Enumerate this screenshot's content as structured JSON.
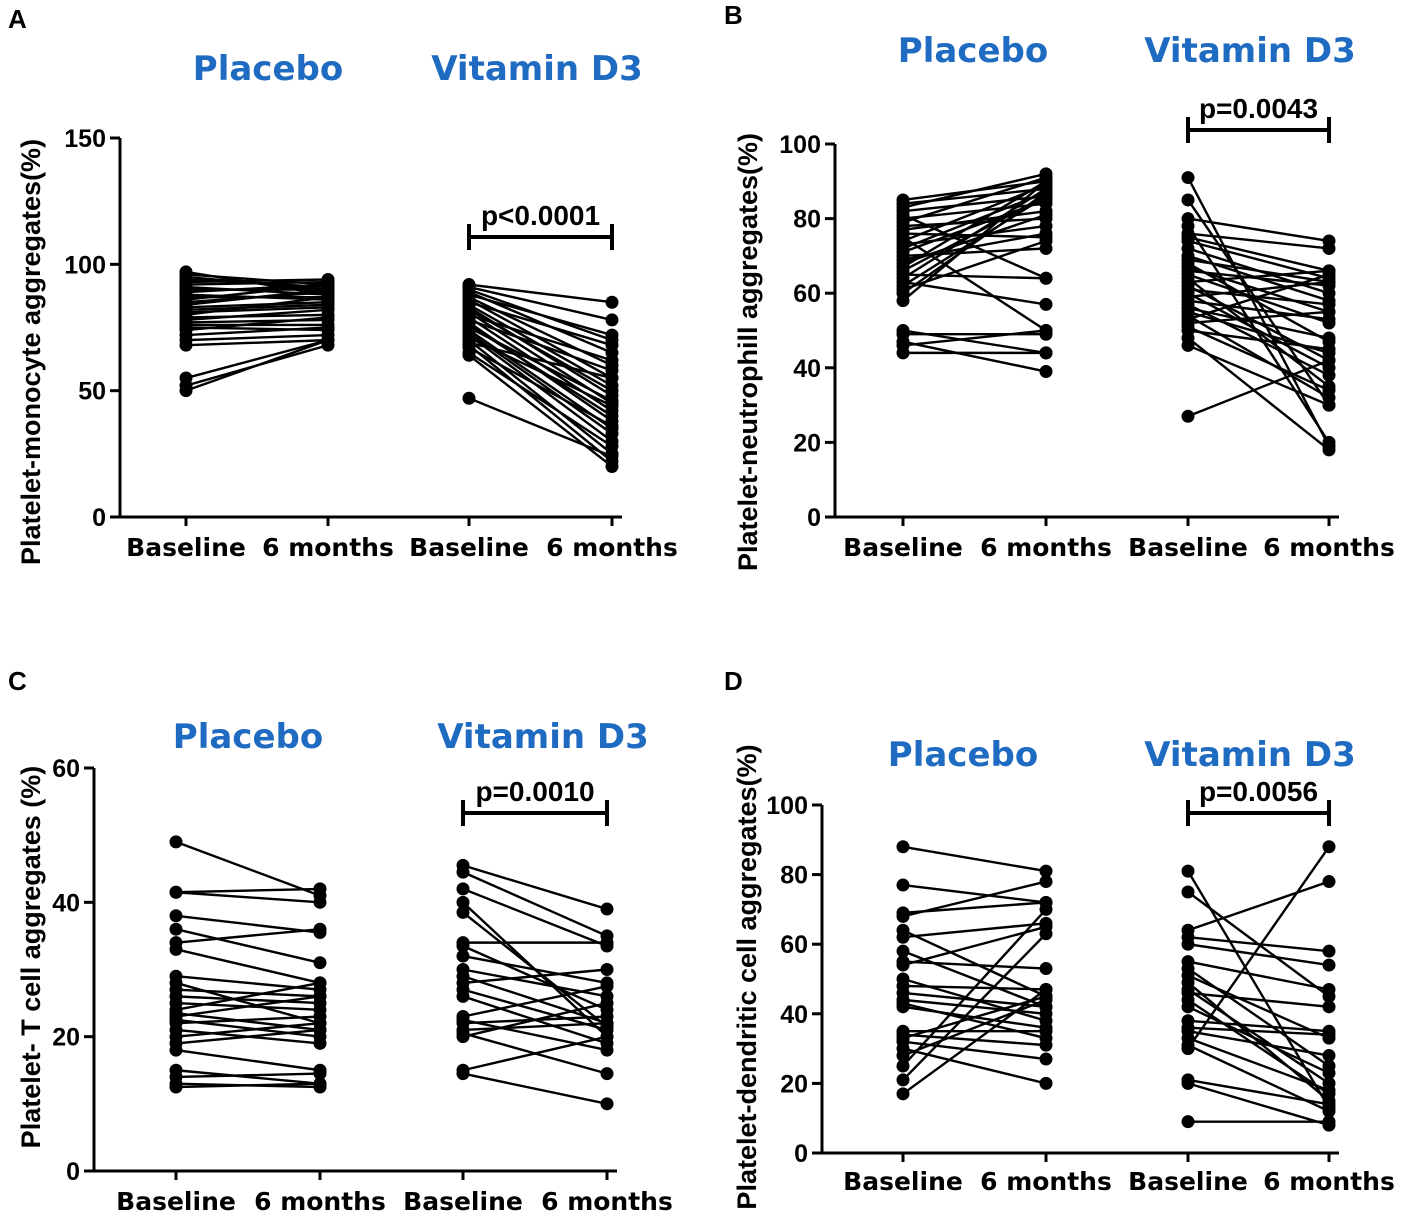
{
  "figure": {
    "accent_color": "#1F6BC1",
    "text_color": "#000000"
  },
  "chart_data": [
    {
      "type": "paired_dot",
      "panel": "A",
      "ylabel": "Platelet-monocyte aggregates(%)",
      "ylim": [
        0,
        150
      ],
      "yticks": [
        0,
        50,
        100,
        150
      ],
      "categories": [
        "Baseline",
        "6 months",
        "Baseline",
        "6 months"
      ],
      "groups": [
        {
          "name": "Placebo",
          "pairs": [
            [
              97,
              88
            ],
            [
              96,
              92
            ],
            [
              95,
              90
            ],
            [
              94,
              91
            ],
            [
              93,
              94
            ],
            [
              92,
              93
            ],
            [
              91,
              88
            ],
            [
              90,
              90
            ],
            [
              89,
              92
            ],
            [
              88,
              86
            ],
            [
              87,
              87
            ],
            [
              86,
              92
            ],
            [
              85,
              89
            ],
            [
              84,
              90
            ],
            [
              83,
              85
            ],
            [
              82,
              84
            ],
            [
              81,
              83
            ],
            [
              80,
              87
            ],
            [
              79,
              80
            ],
            [
              78,
              82
            ],
            [
              77,
              78
            ],
            [
              76,
              76
            ],
            [
              75,
              74
            ],
            [
              74,
              79
            ],
            [
              72,
              75
            ],
            [
              70,
              72
            ],
            [
              68,
              70
            ],
            [
              55,
              70
            ],
            [
              52,
              68
            ],
            [
              50,
              70
            ]
          ]
        },
        {
          "name": "Vitamin D3",
          "pvalue": "p<0.0001",
          "pairs": [
            [
              92,
              85
            ],
            [
              91,
              78
            ],
            [
              90,
              70
            ],
            [
              89,
              65
            ],
            [
              88,
              72
            ],
            [
              87,
              60
            ],
            [
              86,
              55
            ],
            [
              85,
              68
            ],
            [
              84,
              52
            ],
            [
              83,
              48
            ],
            [
              82,
              50
            ],
            [
              81,
              45
            ],
            [
              80,
              62
            ],
            [
              79,
              42
            ],
            [
              78,
              58
            ],
            [
              77,
              38
            ],
            [
              76,
              40
            ],
            [
              75,
              46
            ],
            [
              74,
              35
            ],
            [
              73,
              33
            ],
            [
              72,
              30
            ],
            [
              71,
              44
            ],
            [
              70,
              25
            ],
            [
              69,
              55
            ],
            [
              68,
              22
            ],
            [
              67,
              36
            ],
            [
              65,
              28
            ],
            [
              64,
              20
            ],
            [
              47,
              24
            ]
          ]
        }
      ]
    },
    {
      "type": "paired_dot",
      "panel": "B",
      "ylabel": "Platelet-neutrophill aggregates(%)",
      "ylim": [
        0,
        100
      ],
      "yticks": [
        0,
        20,
        40,
        60,
        80,
        100
      ],
      "categories": [
        "Baseline",
        "6 months",
        "Baseline",
        "6 months"
      ],
      "groups": [
        {
          "name": "Placebo",
          "pairs": [
            [
              85,
              90
            ],
            [
              84,
              88
            ],
            [
              83,
              92
            ],
            [
              82,
              86
            ],
            [
              81,
              64
            ],
            [
              80,
              84
            ],
            [
              79,
              91
            ],
            [
              78,
              80
            ],
            [
              77,
              82
            ],
            [
              76,
              75
            ],
            [
              75,
              50
            ],
            [
              74,
              89
            ],
            [
              73,
              78
            ],
            [
              72,
              87
            ],
            [
              71,
              85
            ],
            [
              70,
              72
            ],
            [
              69,
              76
            ],
            [
              68,
              81
            ],
            [
              67,
              90
            ],
            [
              66,
              86
            ],
            [
              65,
              64
            ],
            [
              64,
              88
            ],
            [
              63,
              57
            ],
            [
              62,
              86
            ],
            [
              61,
              74
            ],
            [
              60,
              87
            ],
            [
              58,
              90
            ],
            [
              50,
              44
            ],
            [
              49,
              49
            ],
            [
              47,
              39
            ],
            [
              46,
              50
            ],
            [
              44,
              44
            ]
          ]
        },
        {
          "name": "Vitamin D3",
          "pvalue": "p=0.0043",
          "pairs": [
            [
              91,
              19
            ],
            [
              85,
              30
            ],
            [
              80,
              74
            ],
            [
              78,
              20
            ],
            [
              76,
              72
            ],
            [
              75,
              66
            ],
            [
              74,
              64
            ],
            [
              72,
              60
            ],
            [
              70,
              58
            ],
            [
              69,
              63
            ],
            [
              68,
              47
            ],
            [
              67,
              55
            ],
            [
              66,
              62
            ],
            [
              65,
              52
            ],
            [
              64,
              35
            ],
            [
              63,
              66
            ],
            [
              62,
              42
            ],
            [
              61,
              57
            ],
            [
              60,
              40
            ],
            [
              59,
              63
            ],
            [
              58,
              53
            ],
            [
              57,
              38
            ],
            [
              56,
              48
            ],
            [
              55,
              44
            ],
            [
              54,
              32
            ],
            [
              53,
              65
            ],
            [
              52,
              55
            ],
            [
              51,
              34
            ],
            [
              50,
              45
            ],
            [
              48,
              18
            ],
            [
              46,
              30
            ],
            [
              27,
              42
            ]
          ]
        }
      ]
    },
    {
      "type": "paired_dot",
      "panel": "C",
      "ylabel": "Platelet- T cell aggregates (%)",
      "ylim": [
        0,
        60
      ],
      "yticks": [
        0,
        20,
        40,
        60
      ],
      "categories": [
        "Baseline",
        "6 months",
        "Baseline",
        "6 months"
      ],
      "groups": [
        {
          "name": "Placebo",
          "pairs": [
            [
              49,
              41
            ],
            [
              41.5,
              42
            ],
            [
              41.5,
              40
            ],
            [
              38,
              35.5
            ],
            [
              36,
              31
            ],
            [
              34,
              36
            ],
            [
              33,
              28
            ],
            [
              29,
              27
            ],
            [
              28,
              22
            ],
            [
              27,
              26
            ],
            [
              26,
              25
            ],
            [
              25,
              24
            ],
            [
              24,
              28
            ],
            [
              23.5,
              21
            ],
            [
              23,
              26
            ],
            [
              22.5,
              20
            ],
            [
              22,
              23
            ],
            [
              21,
              19
            ],
            [
              20,
              22
            ],
            [
              19,
              21
            ],
            [
              18,
              15
            ],
            [
              15,
              13
            ],
            [
              14,
              14.5
            ],
            [
              13,
              12.5
            ],
            [
              12.5,
              13
            ]
          ]
        },
        {
          "name": "Vitamin D3",
          "pvalue": "p=0.0010",
          "pairs": [
            [
              45.5,
              39
            ],
            [
              44.5,
              35
            ],
            [
              42,
              33.5
            ],
            [
              40,
              20
            ],
            [
              38.5,
              21.5
            ],
            [
              34,
              34
            ],
            [
              33.5,
              24
            ],
            [
              32,
              28
            ],
            [
              30,
              26
            ],
            [
              29,
              22
            ],
            [
              28,
              30
            ],
            [
              27,
              21
            ],
            [
              26,
              19
            ],
            [
              23,
              27.5
            ],
            [
              22.5,
              18
            ],
            [
              22,
              23
            ],
            [
              21,
              22
            ],
            [
              20.5,
              14.5
            ],
            [
              20,
              25
            ],
            [
              15,
              20
            ],
            [
              14.5,
              10
            ]
          ]
        }
      ]
    },
    {
      "type": "paired_dot",
      "panel": "D",
      "ylabel": "Platelet-dendritic cell aggregates(%)",
      "ylim": [
        0,
        100
      ],
      "yticks": [
        0,
        20,
        40,
        60,
        80,
        100
      ],
      "categories": [
        "Baseline",
        "6 months",
        "Baseline",
        "6 months"
      ],
      "groups": [
        {
          "name": "Placebo",
          "pairs": [
            [
              88,
              81
            ],
            [
              77,
              72
            ],
            [
              69,
              72
            ],
            [
              68,
              78
            ],
            [
              64,
              45
            ],
            [
              62,
              66
            ],
            [
              58,
              42
            ],
            [
              55,
              53
            ],
            [
              54,
              65
            ],
            [
              50,
              38
            ],
            [
              48,
              47
            ],
            [
              46,
              42
            ],
            [
              44,
              40
            ],
            [
              43,
              33
            ],
            [
              42,
              36
            ],
            [
              35,
              35
            ],
            [
              34,
              31
            ],
            [
              33,
              45
            ],
            [
              32,
              27
            ],
            [
              30,
              20
            ],
            [
              28,
              44
            ],
            [
              25,
              70
            ],
            [
              21,
              63
            ],
            [
              17,
              47
            ]
          ]
        },
        {
          "name": "Vitamin D3",
          "pvalue": "p=0.0056",
          "pairs": [
            [
              81,
              13
            ],
            [
              75,
              45
            ],
            [
              64,
              78
            ],
            [
              62,
              58
            ],
            [
              60,
              54
            ],
            [
              55,
              47
            ],
            [
              53,
              25
            ],
            [
              51,
              33
            ],
            [
              49,
              15
            ],
            [
              47,
              20
            ],
            [
              46,
              42
            ],
            [
              44,
              17
            ],
            [
              42,
              23
            ],
            [
              38,
              35
            ],
            [
              36,
              34
            ],
            [
              35,
              28
            ],
            [
              33,
              18
            ],
            [
              31,
              12
            ],
            [
              30,
              88
            ],
            [
              21,
              14
            ],
            [
              20,
              8
            ],
            [
              9,
              9
            ]
          ]
        }
      ]
    }
  ]
}
